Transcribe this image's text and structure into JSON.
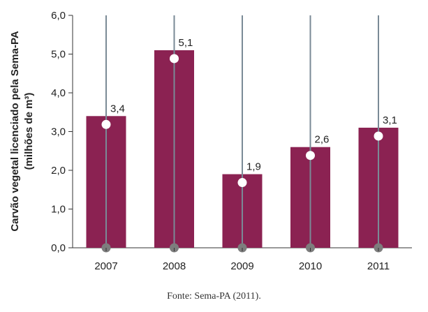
{
  "chart_data": {
    "type": "bar",
    "categories": [
      "2007",
      "2008",
      "2009",
      "2010",
      "2011"
    ],
    "values": [
      3.4,
      5.1,
      1.9,
      2.6,
      3.1
    ],
    "value_labels": [
      "3,4",
      "5,1",
      "1,9",
      "2,6",
      "3,1"
    ],
    "ylabel_lines": [
      "Carvão vegetal licenciado pela Sema-PA",
      "(milhões de m³)"
    ],
    "ylim": [
      0,
      6
    ],
    "yticks": [
      0,
      1,
      2,
      3,
      4,
      5,
      6
    ],
    "ytick_labels": [
      "0,0",
      "1,0",
      "2,0",
      "3,0",
      "4,0",
      "5,0",
      "6,0"
    ],
    "bar_color": "#8b2252",
    "stem_color": "#7a8a96",
    "base_marker_color": "#7d7d7d",
    "top_marker_color": "#ffffff"
  },
  "source_note": "Fonte: Sema-PA (2011)."
}
